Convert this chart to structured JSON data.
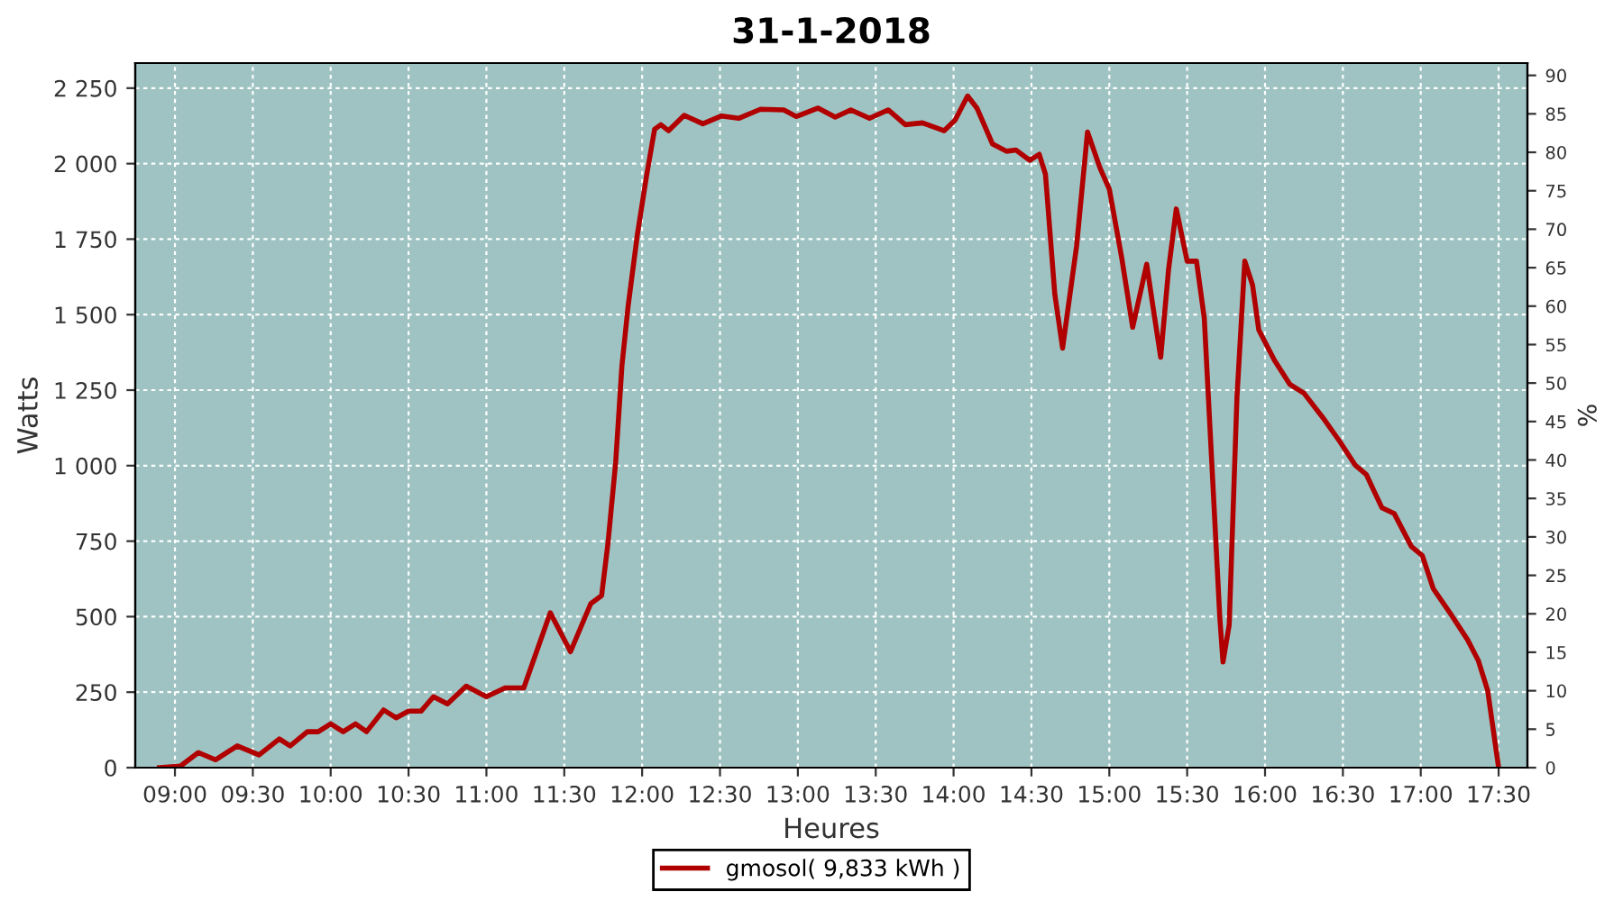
{
  "chart_data": {
    "type": "line",
    "title": "31-1-2018",
    "xlabel": "Heures",
    "ylabel": "Watts",
    "y2label": "%",
    "series": [
      {
        "name": "gmosol( 9,833 kWh )",
        "color": "#b00000",
        "x": [
          8.9,
          9.035,
          9.15,
          9.26,
          9.4,
          9.54,
          9.67,
          9.74,
          9.85,
          9.92,
          10.0,
          10.08,
          10.16,
          10.23,
          10.34,
          10.42,
          10.5,
          10.58,
          10.66,
          10.75,
          10.87,
          11.0,
          11.12,
          11.24,
          11.41,
          11.54,
          11.67,
          11.74,
          11.78,
          11.83,
          11.87,
          11.91,
          11.97,
          12.03,
          12.08,
          12.12,
          12.17,
          12.27,
          12.39,
          12.51,
          12.62,
          12.76,
          12.91,
          12.99,
          13.13,
          13.24,
          13.34,
          13.46,
          13.58,
          13.69,
          13.8,
          13.94,
          14.01,
          14.09,
          14.15,
          14.25,
          14.34,
          14.4,
          14.49,
          14.55,
          14.59,
          14.65,
          14.7,
          14.79,
          14.86,
          14.94,
          15.0,
          15.08,
          15.15,
          15.24,
          15.28,
          15.33,
          15.38,
          15.43,
          15.5,
          15.56,
          15.61,
          15.66,
          15.71,
          15.73,
          15.77,
          15.82,
          15.87,
          15.92,
          15.96,
          16.06,
          16.16,
          16.25,
          16.37,
          16.48,
          16.58,
          16.65,
          16.75,
          16.83,
          16.94,
          17.01,
          17.08,
          17.2,
          17.3,
          17.37,
          17.43,
          17.5
        ],
        "values": [
          0,
          5,
          50,
          26,
          72,
          42,
          95,
          72,
          119,
          119,
          145,
          119,
          145,
          119,
          191,
          165,
          187,
          187,
          235,
          211,
          270,
          235,
          264,
          264,
          513,
          384,
          543,
          570,
          740,
          1010,
          1329,
          1528,
          1767,
          1965,
          2114,
          2129,
          2109,
          2160,
          2132,
          2158,
          2150,
          2180,
          2178,
          2156,
          2184,
          2154,
          2178,
          2150,
          2178,
          2129,
          2135,
          2109,
          2144,
          2224,
          2184,
          2065,
          2041,
          2045,
          2011,
          2031,
          1965,
          1568,
          1389,
          1727,
          2105,
          1986,
          1916,
          1687,
          1458,
          1667,
          1528,
          1359,
          1647,
          1850,
          1677,
          1677,
          1488,
          991,
          494,
          350,
          473,
          1229,
          1677,
          1598,
          1449,
          1349,
          1269,
          1240,
          1160,
          1080,
          1001,
          971,
          861,
          841,
          732,
          702,
          593,
          503,
          424,
          354,
          255,
          0
        ]
      }
    ],
    "xlim": [
      8.745,
      17.685
    ],
    "xticks": [
      {
        "value": 9,
        "label": "09:00"
      },
      {
        "value": 9.5,
        "label": "09:30"
      },
      {
        "value": 10,
        "label": "10:00"
      },
      {
        "value": 10.5,
        "label": "10:30"
      },
      {
        "value": 11,
        "label": "11:00"
      },
      {
        "value": 11.5,
        "label": "11:30"
      },
      {
        "value": 12,
        "label": "12:00"
      },
      {
        "value": 12.5,
        "label": "12:30"
      },
      {
        "value": 13,
        "label": "13:00"
      },
      {
        "value": 13.5,
        "label": "13:30"
      },
      {
        "value": 14,
        "label": "14:00"
      },
      {
        "value": 14.5,
        "label": "14:30"
      },
      {
        "value": 15,
        "label": "15:00"
      },
      {
        "value": 15.5,
        "label": "15:30"
      },
      {
        "value": 16,
        "label": "16:00"
      },
      {
        "value": 16.5,
        "label": "16:30"
      },
      {
        "value": 17,
        "label": "17:00"
      },
      {
        "value": 17.5,
        "label": "17:30"
      }
    ],
    "ylim": [
      0,
      2333
    ],
    "yticks": [
      0,
      250,
      500,
      750,
      {
        "value": 1000,
        "label": "1 000"
      },
      {
        "value": 1250,
        "label": "1 250"
      },
      {
        "value": 1500,
        "label": "1 500"
      },
      {
        "value": 1750,
        "label": "1 750"
      },
      {
        "value": 2000,
        "label": "2 000"
      },
      {
        "value": 2250,
        "label": "2 250"
      }
    ],
    "y2lim": [
      0,
      91.6
    ],
    "y2ticks": [
      0,
      5,
      10,
      15,
      20,
      25,
      30,
      35,
      40,
      45,
      50,
      55,
      60,
      65,
      70,
      75,
      80,
      85,
      90
    ],
    "grid": true,
    "legend": "bottom",
    "marker": "none",
    "line_style": "solid"
  }
}
